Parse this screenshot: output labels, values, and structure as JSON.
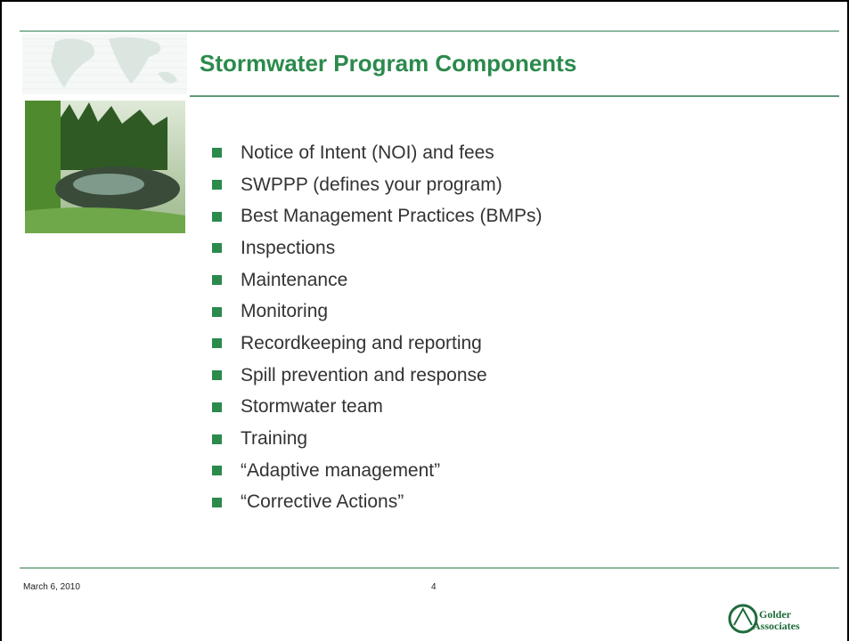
{
  "header": {
    "title": "Stormwater Program Components"
  },
  "bullets": [
    "Notice of Intent (NOI) and fees",
    "SWPPP (defines your program)",
    "Best Management Practices (BMPs)",
    "Inspections",
    "Maintenance",
    "Monitoring",
    "Recordkeeping and reporting",
    "Spill prevention and response",
    "Stormwater team",
    "Training",
    "“Adaptive management”",
    "“Corrective Actions”"
  ],
  "footer": {
    "date": "March 6, 2010",
    "page": "4"
  },
  "logo": {
    "line1": "Golder",
    "line2": "Associates"
  }
}
